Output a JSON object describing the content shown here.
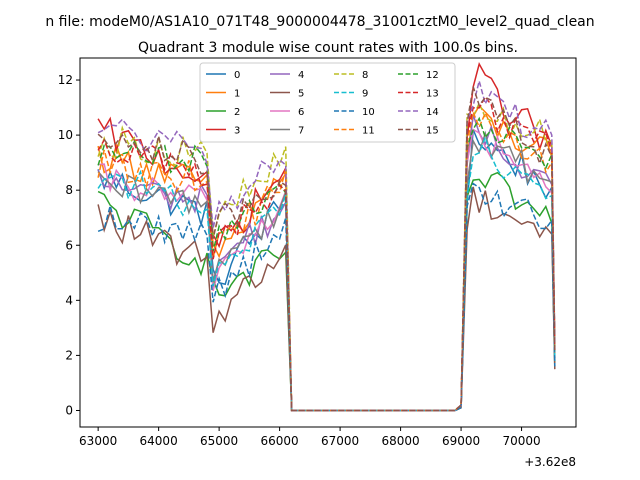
{
  "chart_data": {
    "type": "line",
    "suptitle": "n file: modeM0/AS1A10_071T48_9000004478_31001cztM0_level2_quad_clean",
    "title": "Quadrant 3 module wise count rates with 100.0s bins.",
    "xlabel": "",
    "ylabel": "",
    "x_offset_label": "+3.62e8",
    "xlim": [
      362062700,
      362070900
    ],
    "ylim": [
      -0.6,
      12.8
    ],
    "xticks": [
      63000,
      64000,
      65000,
      66000,
      67000,
      68000,
      69000,
      70000
    ],
    "xtick_labels": [
      "63000",
      "64000",
      "65000",
      "66000",
      "67000",
      "68000",
      "69000",
      "70000"
    ],
    "yticks": [
      0,
      2,
      4,
      6,
      8,
      10,
      12
    ],
    "ytick_labels": [
      "0",
      "2",
      "4",
      "6",
      "8",
      "10",
      "12"
    ],
    "grid": false,
    "legend": {
      "placement": "top-center",
      "ncol": 4
    },
    "x_relative_anchors": [
      63000,
      64800,
      64900,
      66100,
      66200,
      68900,
      69000,
      69100,
      69200,
      70500,
      70550
    ],
    "series": [
      {
        "name": "0",
        "color": "#1f77b4",
        "dash": "solid",
        "anchors": [
          8.5,
          7.2,
          4.6,
          7.6,
          0.0,
          0.0,
          0.1,
          8.0,
          10.0,
          8.1,
          1.8
        ]
      },
      {
        "name": "1",
        "color": "#ff7f0e",
        "dash": "solid",
        "anchors": [
          9.3,
          8.2,
          5.5,
          8.6,
          0.0,
          0.0,
          0.2,
          9.2,
          10.7,
          9.2,
          2.1
        ]
      },
      {
        "name": "2",
        "color": "#2ca02c",
        "dash": "solid",
        "anchors": [
          7.6,
          5.4,
          4.2,
          5.7,
          0.0,
          0.0,
          0.1,
          7.2,
          8.6,
          6.8,
          1.6
        ]
      },
      {
        "name": "3",
        "color": "#d62728",
        "dash": "solid",
        "anchors": [
          10.2,
          8.4,
          5.8,
          8.7,
          0.0,
          0.0,
          0.2,
          10.0,
          12.2,
          9.6,
          2.3
        ]
      },
      {
        "name": "4",
        "color": "#9467bd",
        "dash": "solid",
        "anchors": [
          8.3,
          7.6,
          5.3,
          7.4,
          0.0,
          0.0,
          0.1,
          8.5,
          10.2,
          8.2,
          1.9
        ]
      },
      {
        "name": "5",
        "color": "#8c564b",
        "dash": "solid",
        "anchors": [
          7.0,
          5.4,
          3.4,
          5.8,
          0.0,
          0.0,
          0.1,
          6.8,
          7.8,
          6.4,
          1.5
        ]
      },
      {
        "name": "6",
        "color": "#e377c2",
        "dash": "solid",
        "anchors": [
          8.4,
          7.5,
          4.9,
          7.7,
          0.0,
          0.0,
          0.1,
          8.7,
          10.1,
          7.9,
          1.9
        ]
      },
      {
        "name": "7",
        "color": "#7f7f7f",
        "dash": "solid",
        "anchors": [
          8.1,
          7.5,
          5.2,
          7.6,
          0.0,
          0.0,
          0.1,
          8.6,
          9.9,
          8.3,
          1.9
        ]
      },
      {
        "name": "8",
        "color": "#bcbd22",
        "dash": "dashed",
        "anchors": [
          9.8,
          9.3,
          6.8,
          9.2,
          0.0,
          0.0,
          0.2,
          10.6,
          11.0,
          9.8,
          2.3
        ]
      },
      {
        "name": "9",
        "color": "#17becf",
        "dash": "dashed",
        "anchors": [
          8.6,
          7.3,
          5.0,
          7.4,
          0.0,
          0.0,
          0.1,
          8.3,
          9.8,
          7.8,
          1.8
        ]
      },
      {
        "name": "10",
        "color": "#1f77b4",
        "dash": "dashed",
        "anchors": [
          7.0,
          6.4,
          4.4,
          6.5,
          0.0,
          0.0,
          0.1,
          7.4,
          7.8,
          6.9,
          1.6
        ]
      },
      {
        "name": "11",
        "color": "#ff7f0e",
        "dash": "dashed",
        "anchors": [
          8.9,
          8.4,
          6.0,
          8.2,
          0.0,
          0.0,
          0.2,
          9.2,
          10.6,
          9.0,
          2.1
        ]
      },
      {
        "name": "12",
        "color": "#2ca02c",
        "dash": "dashed",
        "anchors": [
          9.3,
          9.0,
          6.2,
          8.5,
          0.0,
          0.0,
          0.2,
          9.7,
          10.2,
          9.3,
          2.1
        ]
      },
      {
        "name": "13",
        "color": "#d62728",
        "dash": "dashed",
        "anchors": [
          9.8,
          8.4,
          5.9,
          8.5,
          0.0,
          0.0,
          0.2,
          9.6,
          11.2,
          9.4,
          2.2
        ]
      },
      {
        "name": "14",
        "color": "#9467bd",
        "dash": "dashed",
        "anchors": [
          10.4,
          9.2,
          7.0,
          9.4,
          0.0,
          0.0,
          0.2,
          10.8,
          11.5,
          10.0,
          2.4
        ]
      },
      {
        "name": "15",
        "color": "#8c564b",
        "dash": "dashed",
        "anchors": [
          10.3,
          8.9,
          6.6,
          8.6,
          0.0,
          0.0,
          0.2,
          10.2,
          11.2,
          9.2,
          2.2
        ]
      }
    ]
  }
}
